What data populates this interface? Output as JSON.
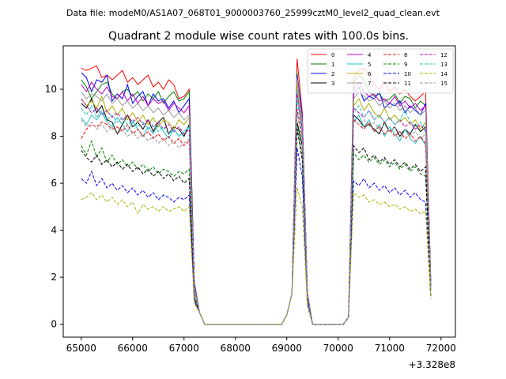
{
  "chart_data": {
    "type": "line",
    "suptitle": "Data file: modeM0/AS1A07_068T01_9000003760_25999cztM0_level2_quad_clean.evt",
    "title": "Quadrant 2 module wise count rates with 100.0s bins.",
    "xlabel": "",
    "ylabel": "",
    "x_offset_label": "+3.328e8",
    "xlim": [
      64650,
      72280
    ],
    "ylim": [
      -0.55,
      11.85
    ],
    "xticks": [
      65000,
      66000,
      67000,
      68000,
      69000,
      70000,
      71000,
      72000
    ],
    "xtick_labels": [
      "65000",
      "66000",
      "67000",
      "68000",
      "69000",
      "70000",
      "71000",
      "72000"
    ],
    "yticks": [
      0,
      2,
      4,
      6,
      8,
      10
    ],
    "ytick_labels": [
      "0",
      "2",
      "4",
      "6",
      "8",
      "10"
    ],
    "legend_position": "top-right",
    "x_segments": [
      {
        "x_start": 65000,
        "x_end": 67200,
        "step": 100
      },
      {
        "x_start": 67300,
        "x_end": 69200,
        "step": 100
      },
      {
        "x_start": 69300,
        "x_end": 69500,
        "step": 100
      },
      {
        "x_start": 69600,
        "x_end": 70300,
        "step": 100
      },
      {
        "x_start": 70400,
        "x_end": 72000,
        "step": 100
      }
    ],
    "series": [
      {
        "name": "0",
        "color": "#ff0000",
        "style": "solid",
        "active": [
          10.9,
          10.8,
          10.9,
          11.0,
          10.5,
          10.6,
          10.4,
          10.6,
          10.8,
          10.3,
          10.5,
          10.2,
          10.4,
          10.6,
          10.1,
          10.3,
          10.0,
          10.4,
          10.2,
          9.6,
          9.7,
          10.0
        ],
        "peak": [
          11.3,
          9.0
        ],
        "tail": [
          10.5,
          10.8,
          10.9,
          10.6,
          10.2,
          10.0,
          10.3,
          9.9,
          10.1,
          9.8,
          10.0,
          9.7,
          9.5,
          9.7,
          9.9,
          9.6
        ]
      },
      {
        "name": "1",
        "color": "#008000",
        "style": "solid",
        "active": [
          10.4,
          10.1,
          9.6,
          9.9,
          10.2,
          10.3,
          9.8,
          9.6,
          9.9,
          10.0,
          9.7,
          9.9,
          9.5,
          9.8,
          9.6,
          9.9,
          9.4,
          9.7,
          9.9,
          9.5,
          9.6,
          9.9
        ],
        "peak": [
          10.7,
          8.7
        ],
        "tail": [
          10.3,
          10.6,
          10.4,
          9.9,
          9.7,
          9.8,
          9.5,
          9.6,
          9.8,
          9.4,
          9.7,
          9.6,
          9.2,
          9.5,
          9.3,
          9.0
        ]
      },
      {
        "name": "2",
        "color": "#0000ff",
        "style": "solid",
        "active": [
          10.7,
          10.5,
          9.9,
          10.4,
          10.3,
          10.6,
          9.5,
          9.8,
          9.6,
          10.2,
          9.4,
          9.7,
          9.9,
          9.3,
          9.8,
          9.5,
          9.6,
          9.2,
          9.5,
          9.0,
          9.3,
          9.6
        ],
        "peak": [
          10.6,
          8.9
        ],
        "tail": [
          9.8,
          10.1,
          9.5,
          9.7,
          9.6,
          9.9,
          9.2,
          9.4,
          9.3,
          9.5,
          9.0,
          9.3,
          9.1,
          8.9,
          9.4,
          9.1
        ]
      },
      {
        "name": "3",
        "color": "#000000",
        "style": "solid",
        "active": [
          9.4,
          9.2,
          9.6,
          9.0,
          9.3,
          8.7,
          8.6,
          8.1,
          8.5,
          8.9,
          8.4,
          8.6,
          8.3,
          8.7,
          8.2,
          8.6,
          8.8,
          8.1,
          8.4,
          8.3,
          8.0,
          8.5
        ],
        "peak": [
          8.6,
          7.6
        ],
        "tail": [
          8.9,
          8.7,
          8.4,
          8.5,
          8.3,
          8.1,
          8.6,
          8.2,
          8.4,
          8.0,
          8.3,
          8.1,
          8.5,
          8.2,
          8.4,
          7.9
        ]
      },
      {
        "name": "4",
        "color": "#c000c0",
        "style": "solid",
        "active": [
          10.2,
          9.9,
          10.3,
          10.0,
          9.8,
          10.1,
          9.7,
          9.6,
          9.9,
          9.5,
          9.8,
          9.4,
          9.7,
          9.3,
          9.6,
          9.4,
          9.5,
          9.1,
          9.4,
          9.2,
          9.0,
          9.3
        ],
        "peak": [
          10.4,
          8.8
        ],
        "tail": [
          10.0,
          10.3,
          9.9,
          9.7,
          9.8,
          9.5,
          9.6,
          9.4,
          9.7,
          9.3,
          9.5,
          9.2,
          9.4,
          9.1,
          9.3,
          9.0
        ]
      },
      {
        "name": "5",
        "color": "#20c0c0",
        "style": "solid",
        "active": [
          8.8,
          8.5,
          8.9,
          8.7,
          9.0,
          8.6,
          8.4,
          8.8,
          8.5,
          8.2,
          8.6,
          8.3,
          8.0,
          8.4,
          8.1,
          8.5,
          8.2,
          7.9,
          8.3,
          8.0,
          8.2,
          8.4
        ],
        "peak": [
          10.0,
          8.2
        ],
        "tail": [
          8.6,
          8.9,
          8.4,
          8.7,
          8.2,
          8.5,
          8.0,
          8.4,
          8.1,
          7.8,
          8.3,
          7.9,
          7.7,
          8.0,
          7.6,
          7.3
        ]
      },
      {
        "name": "6",
        "color": "#b0b000",
        "style": "solid",
        "active": [
          9.6,
          9.3,
          9.5,
          9.2,
          9.7,
          9.0,
          9.3,
          8.9,
          9.2,
          8.7,
          9.0,
          8.6,
          8.9,
          8.5,
          8.8,
          8.4,
          8.7,
          8.6,
          8.3,
          8.7,
          8.5,
          8.8
        ],
        "peak": [
          10.3,
          8.5
        ],
        "tail": [
          9.3,
          9.6,
          9.1,
          9.4,
          9.0,
          8.8,
          9.2,
          8.7,
          8.9,
          8.6,
          8.8,
          8.5,
          8.7,
          8.3,
          8.6,
          8.2
        ]
      },
      {
        "name": "7",
        "color": "#999999",
        "style": "solid",
        "active": [
          9.9,
          9.6,
          9.8,
          9.7,
          9.5,
          9.8,
          9.4,
          9.6,
          9.3,
          9.5,
          9.2,
          9.4,
          9.1,
          9.3,
          9.0,
          9.2,
          8.9,
          9.1,
          8.8,
          9.0,
          8.7,
          8.9
        ],
        "peak": [
          10.5,
          8.6
        ],
        "tail": [
          9.6,
          9.9,
          9.7,
          9.5,
          9.6,
          9.3,
          9.5,
          9.2,
          9.4,
          9.1,
          9.3,
          9.0,
          9.2,
          8.9,
          9.1,
          8.8
        ]
      },
      {
        "name": "8",
        "color": "#ff0000",
        "style": "dashed",
        "active": [
          7.9,
          8.3,
          8.5,
          8.4,
          8.6,
          8.5,
          8.3,
          8.4,
          8.2,
          8.5,
          8.1,
          8.3,
          8.0,
          8.2,
          7.9,
          8.1,
          7.8,
          8.0,
          7.7,
          7.9,
          7.6,
          7.8
        ],
        "peak": [
          9.2,
          7.9
        ],
        "tail": [
          8.7,
          8.5,
          8.3,
          8.6,
          8.2,
          8.4,
          8.1,
          8.3,
          8.0,
          8.2,
          7.9,
          8.1,
          7.8,
          8.0,
          7.7,
          7.5
        ]
      },
      {
        "name": "9",
        "color": "#008000",
        "style": "dashed",
        "active": [
          7.6,
          7.2,
          7.8,
          7.1,
          7.5,
          6.9,
          7.2,
          6.8,
          7.0,
          6.7,
          6.9,
          6.6,
          6.8,
          6.5,
          6.7,
          6.4,
          6.6,
          6.5,
          6.3,
          6.5,
          6.4,
          6.6
        ],
        "peak": [
          8.5,
          7.2
        ],
        "tail": [
          7.3,
          7.0,
          7.2,
          6.9,
          7.1,
          6.8,
          7.0,
          6.7,
          6.9,
          6.6,
          6.8,
          6.5,
          6.7,
          6.4,
          6.3,
          6.0
        ]
      },
      {
        "name": "10",
        "color": "#0000ff",
        "style": "dashed",
        "active": [
          6.2,
          6.0,
          6.5,
          5.9,
          6.2,
          5.8,
          6.0,
          5.7,
          5.9,
          5.6,
          5.8,
          5.5,
          5.7,
          5.4,
          5.6,
          5.3,
          5.5,
          5.4,
          5.2,
          5.4,
          5.3,
          5.5
        ],
        "peak": [
          7.5,
          6.3
        ],
        "tail": [
          6.1,
          5.9,
          6.2,
          5.8,
          6.0,
          5.7,
          5.9,
          5.6,
          5.8,
          5.5,
          5.7,
          5.4,
          5.6,
          5.3,
          5.2,
          5.0
        ]
      },
      {
        "name": "11",
        "color": "#000000",
        "style": "dashed",
        "active": [
          7.4,
          7.1,
          6.9,
          7.2,
          6.8,
          7.0,
          6.7,
          6.9,
          6.6,
          6.8,
          6.5,
          6.7,
          6.4,
          6.6,
          6.3,
          6.5,
          6.2,
          6.4,
          6.1,
          6.3,
          6.0,
          6.2
        ],
        "peak": [
          8.3,
          7.0
        ],
        "tail": [
          7.6,
          7.3,
          7.5,
          7.0,
          7.2,
          6.9,
          7.1,
          6.8,
          7.0,
          6.7,
          6.9,
          6.6,
          6.8,
          6.5,
          6.7,
          6.3
        ]
      },
      {
        "name": "12",
        "color": "#c000c0",
        "style": "dashed",
        "active": [
          9.6,
          9.3,
          9.0,
          9.2,
          8.9,
          9.1,
          8.8,
          9.0,
          8.7,
          8.9,
          8.6,
          8.8,
          8.5,
          8.7,
          8.4,
          8.6,
          8.3,
          8.5,
          8.2,
          8.4,
          8.1,
          8.3
        ],
        "peak": [
          9.8,
          8.3
        ],
        "tail": [
          9.2,
          9.0,
          8.8,
          9.1,
          8.7,
          8.9,
          8.6,
          8.8,
          8.5,
          8.7,
          8.4,
          8.6,
          8.3,
          8.5,
          8.2,
          8.0
        ]
      },
      {
        "name": "13",
        "color": "#20c0c0",
        "style": "dashed",
        "active": [
          9.2,
          8.9,
          9.3,
          8.8,
          9.1,
          8.7,
          8.9,
          8.6,
          8.8,
          8.5,
          8.7,
          8.4,
          8.6,
          8.3,
          8.5,
          8.2,
          8.4,
          8.1,
          8.3,
          8.0,
          8.2,
          8.4
        ],
        "peak": [
          9.6,
          8.1
        ],
        "tail": [
          9.0,
          9.3,
          8.8,
          9.1,
          8.7,
          8.9,
          8.6,
          8.8,
          8.5,
          8.7,
          9.1,
          8.6,
          8.4,
          8.6,
          8.3,
          8.1
        ]
      },
      {
        "name": "14",
        "color": "#b0b000",
        "style": "dashed",
        "active": [
          5.3,
          5.4,
          5.6,
          5.3,
          5.5,
          5.2,
          5.4,
          5.1,
          5.3,
          5.0,
          5.2,
          4.7,
          5.1,
          4.9,
          5.0,
          4.8,
          5.0,
          4.8,
          4.9,
          5.0,
          4.8,
          5.0
        ],
        "peak": [
          5.8,
          5.0
        ],
        "tail": [
          5.6,
          5.4,
          5.5,
          5.2,
          5.3,
          5.1,
          5.2,
          5.0,
          5.1,
          4.9,
          5.0,
          4.8,
          4.9,
          4.7,
          4.8,
          4.3
        ]
      },
      {
        "name": "15",
        "color": "#999999",
        "style": "dashed",
        "active": [
          8.7,
          8.4,
          8.6,
          8.3,
          8.5,
          8.2,
          8.4,
          8.1,
          8.3,
          8.0,
          8.2,
          7.9,
          8.1,
          7.8,
          8.0,
          7.7,
          7.9,
          7.6,
          7.8,
          7.5,
          7.7,
          7.9
        ],
        "peak": [
          9.0,
          7.8
        ],
        "tail": [
          8.8,
          8.5,
          8.7,
          8.4,
          8.6,
          8.3,
          8.5,
          8.2,
          8.4,
          8.1,
          8.3,
          8.0,
          8.2,
          7.9,
          8.1,
          7.7
        ]
      }
    ]
  }
}
